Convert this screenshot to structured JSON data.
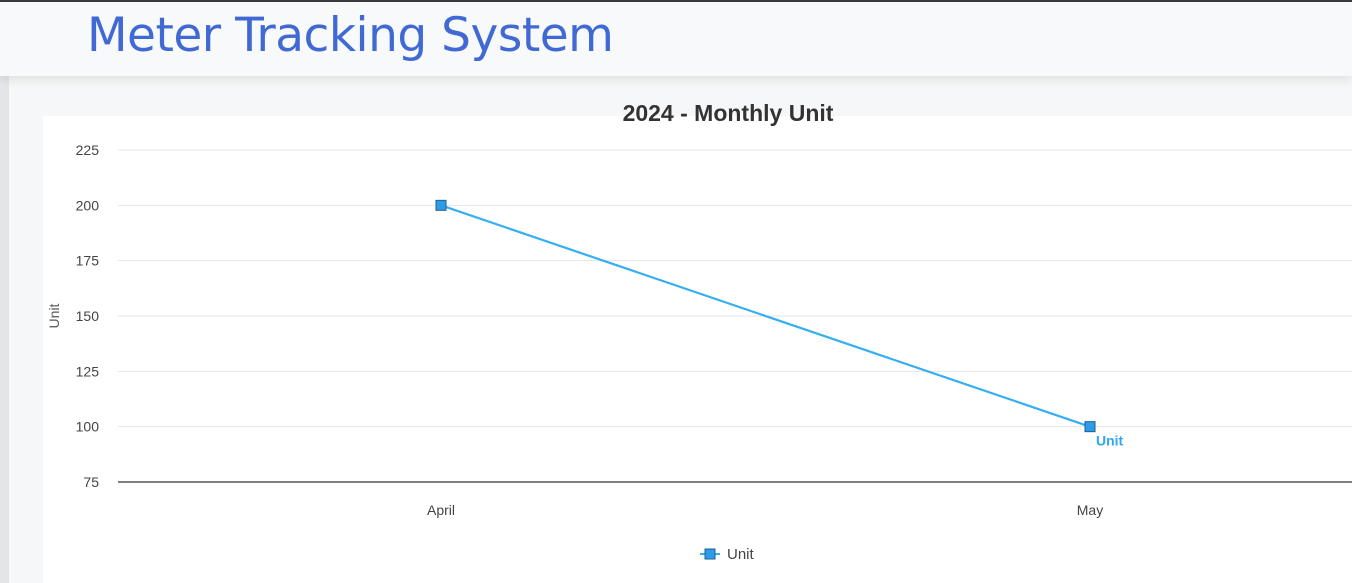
{
  "header": {
    "title": "Meter Tracking System"
  },
  "colors": {
    "title": "#4169d4",
    "series": "#36aef2",
    "marker_fill": "#2d9ce6",
    "marker_stroke": "#1f5f8f",
    "grid": "#e6e6e6",
    "axis": "#333333"
  },
  "chart_data": {
    "type": "line",
    "title": "2024 - Monthly Unit",
    "ylabel": "Unit",
    "xlabel": "",
    "categories": [
      "April",
      "May"
    ],
    "series": [
      {
        "name": "Unit",
        "values": [
          200,
          100
        ]
      }
    ],
    "ylim": [
      75,
      225
    ],
    "yticks": [
      75,
      100,
      125,
      150,
      175,
      200,
      225
    ],
    "grid": true,
    "marker": "square",
    "data_label": "Unit",
    "legend": {
      "position": "bottom-center",
      "entries": [
        "Unit"
      ]
    }
  }
}
